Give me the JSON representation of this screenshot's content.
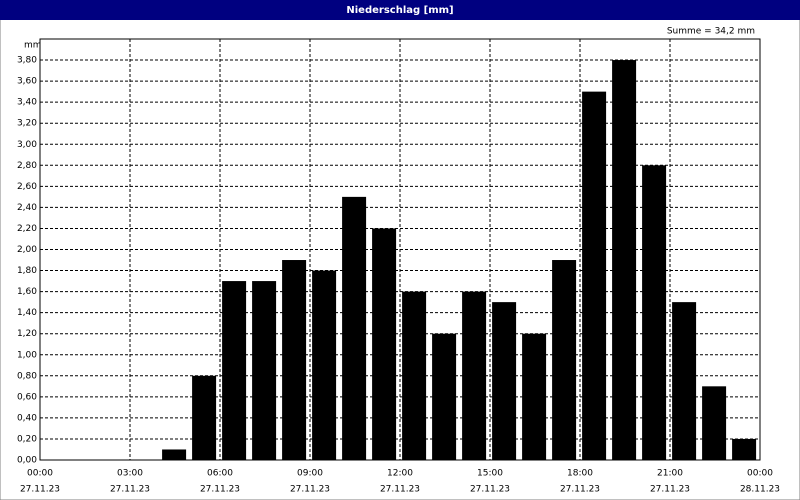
{
  "chart_data": {
    "type": "histogram",
    "title": "Niederschlag [mm]",
    "y_label": "mm",
    "annotation": "Summe = 34,2 mm",
    "bins": [
      0,
      1,
      2,
      3,
      4,
      5,
      6,
      7,
      8,
      9,
      10,
      11,
      12,
      13,
      14,
      15,
      16,
      17,
      18,
      19,
      20,
      21,
      22,
      23,
      24
    ],
    "values": [
      0,
      0,
      0,
      0,
      0.1,
      0.8,
      1.7,
      1.7,
      1.9,
      1.8,
      2.5,
      2.2,
      1.6,
      1.2,
      1.6,
      1.5,
      1.2,
      1.9,
      3.5,
      3.8,
      2.8,
      1.5,
      0.7,
      0.2
    ],
    "color": "#000000",
    "xlim": [
      0,
      24
    ],
    "xticks": [
      {
        "value": 0,
        "label": "00:00"
      },
      {
        "value": 3,
        "label": "03:00"
      },
      {
        "value": 6,
        "label": "06:00"
      },
      {
        "value": 9,
        "label": "09:00"
      },
      {
        "value": 12,
        "label": "12:00"
      },
      {
        "value": 15,
        "label": "15:00"
      },
      {
        "value": 18,
        "label": "18:00"
      },
      {
        "value": 21,
        "label": "21:00"
      },
      {
        "value": 24,
        "label": "00:00"
      }
    ],
    "xtick_dates": [
      "27.11.23",
      "27.11.23",
      "27.11.23",
      "27.11.23",
      "27.11.23",
      "27.11.23",
      "27.11.23",
      "27.11.23",
      "28.11.23"
    ],
    "ylim": [
      0,
      4
    ],
    "yticks": [
      {
        "value": 0,
        "label": "0,00"
      },
      {
        "value": 0.2,
        "label": "0,20"
      },
      {
        "value": 0.4,
        "label": "0,40"
      },
      {
        "value": 0.6,
        "label": "0,60"
      },
      {
        "value": 0.8,
        "label": "0,80"
      },
      {
        "value": 1,
        "label": "1,00"
      },
      {
        "value": 1.2,
        "label": "1,20"
      },
      {
        "value": 1.4,
        "label": "1,40"
      },
      {
        "value": 1.6,
        "label": "1,60"
      },
      {
        "value": 1.8,
        "label": "1,80"
      },
      {
        "value": 2,
        "label": "2,00"
      },
      {
        "value": 2.2,
        "label": "2,20"
      },
      {
        "value": 2.4,
        "label": "2,40"
      },
      {
        "value": 2.6,
        "label": "2,60"
      },
      {
        "value": 2.8,
        "label": "2,80"
      },
      {
        "value": 3,
        "label": "3,00"
      },
      {
        "value": 3.2,
        "label": "3,20"
      },
      {
        "value": 3.4,
        "label": "3,40"
      },
      {
        "value": 3.6,
        "label": "3,60"
      },
      {
        "value": 3.8,
        "label": "3,80"
      }
    ],
    "grid": true
  }
}
